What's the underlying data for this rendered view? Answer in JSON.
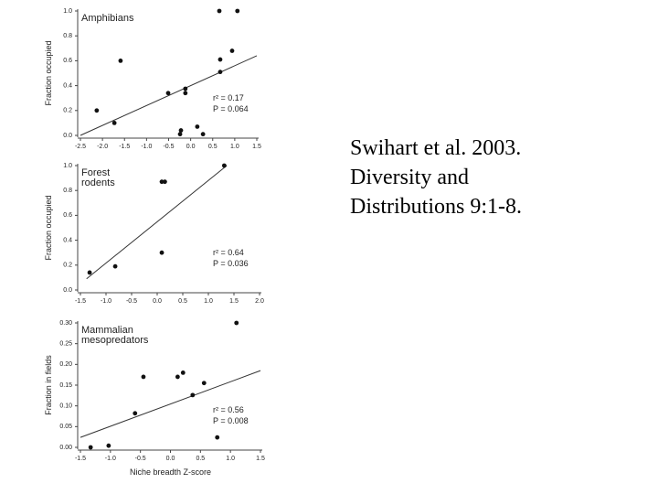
{
  "chart_data": [
    {
      "type": "scatter",
      "title": [
        "Amphibians"
      ],
      "ylabel": "Fraction occupied",
      "annotations": [
        "r² = 0.17",
        "P = 0.064"
      ],
      "x": [
        -2.13,
        -1.73,
        -1.59,
        -0.51,
        -0.12,
        -0.12,
        -0.22,
        -0.24,
        0.15,
        0.28,
        0.65,
        1.06,
        0.67,
        0.67,
        0.94
      ],
      "values": [
        0.2,
        0.1,
        0.6,
        0.34,
        0.375,
        0.34,
        0.04,
        0.01,
        0.07,
        0.01,
        1.0,
        1.0,
        0.61,
        0.51,
        0.68
      ],
      "fit": {
        "x": [
          -2.5,
          1.5
        ],
        "y": [
          0.0,
          0.64
        ]
      },
      "xlim": [
        -2.5,
        1.5
      ],
      "ylim": [
        0,
        1.0
      ],
      "xticks": [
        -2.5,
        {
          "value": -2,
          "label": "-2.0"
        },
        -1.5,
        {
          "value": -1,
          "label": "-1.0"
        },
        -0.5,
        {
          "value": 0,
          "label": "0.0"
        },
        0.5,
        {
          "value": 1,
          "label": "1.0"
        },
        1.5
      ],
      "yticks": [
        {
          "value": 0,
          "label": "0.0"
        },
        0.2,
        0.4,
        0.6,
        0.8,
        {
          "value": 1,
          "label": "1.0"
        }
      ],
      "color": "#111111"
    },
    {
      "type": "scatter",
      "title": [
        "Forest",
        "rodents"
      ],
      "ylabel": "Fraction occupied",
      "annotations": [
        "r² = 0.64",
        "P = 0.036"
      ],
      "x": [
        -1.32,
        -0.82,
        0.09,
        0.15,
        0.09,
        1.31
      ],
      "values": [
        0.14,
        0.19,
        0.87,
        0.87,
        0.3,
        1.0
      ],
      "fit": {
        "x": [
          -1.38,
          1.36
        ],
        "y": [
          0.09,
          1.0
        ]
      },
      "xlim": [
        -1.5,
        2.0
      ],
      "ylim": [
        0,
        1.0
      ],
      "xticks": [
        -1.5,
        {
          "value": -1,
          "label": "-1.0"
        },
        -0.5,
        {
          "value": 0,
          "label": "0.0"
        },
        0.5,
        {
          "value": 1,
          "label": "1.0"
        },
        1.5,
        {
          "value": 2,
          "label": "2.0"
        }
      ],
      "yticks": [
        {
          "value": 0,
          "label": "0.0"
        },
        0.2,
        0.4,
        0.6,
        0.8,
        {
          "value": 1,
          "label": "1.0"
        }
      ],
      "color": "#111111"
    },
    {
      "type": "scatter",
      "title": [
        "Mammalian",
        "mesopredators"
      ],
      "ylabel": "Fraction in fields",
      "xlabel": "Niche breadth Z-score",
      "annotations": [
        "r² = 0.56",
        "P = 0.008"
      ],
      "x": [
        -1.33,
        -1.03,
        -0.59,
        -0.45,
        0.12,
        0.21,
        0.37,
        0.56,
        0.78,
        1.1
      ],
      "values": [
        0.0,
        0.004,
        0.082,
        0.17,
        0.17,
        0.18,
        0.126,
        0.155,
        0.024,
        0.3
      ],
      "fit": {
        "x": [
          -1.5,
          1.5
        ],
        "y": [
          0.024,
          0.185
        ]
      },
      "xlim": [
        -1.5,
        1.5
      ],
      "ylim": [
        0,
        0.3
      ],
      "xticks": [
        -1.5,
        {
          "value": -1,
          "label": "-1.0"
        },
        -0.5,
        {
          "value": 0,
          "label": "0.0"
        },
        0.5,
        {
          "value": 1,
          "label": "1.0"
        },
        1.5
      ],
      "yticks": [
        {
          "value": 0,
          "label": "0.00"
        },
        0.05,
        {
          "value": 0.1,
          "label": "0.10"
        },
        0.15,
        {
          "value": 0.2,
          "label": "0.20"
        },
        0.25,
        {
          "value": 0.3,
          "label": "0.30"
        }
      ],
      "color": "#111111"
    }
  ],
  "citation": [
    "Swihart et al. 2003.",
    "Diversity and",
    "Distributions 9:1-8."
  ]
}
